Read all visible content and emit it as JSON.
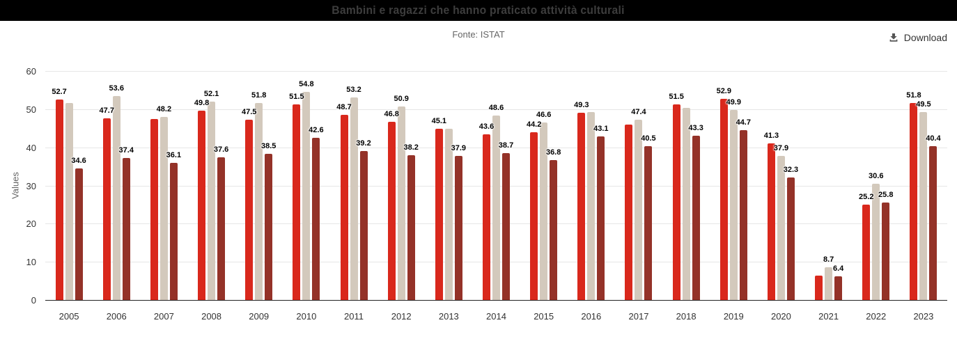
{
  "header": {
    "title": "Bambini e ragazzi che hanno praticato attività culturali",
    "bg_color": "#000000",
    "title_color": "#3d3d3d"
  },
  "toolbar": {
    "subtitle": "Fonte: ISTAT",
    "download_label": "Download"
  },
  "colors": {
    "series_red": "#d9281c",
    "series_beige": "#d3c9bc",
    "series_dark_red": "#943228",
    "gridline": "#e6e6e6",
    "axis_line": "#222222",
    "axis_text": "#333333",
    "muted_text": "#666666"
  },
  "chart_data": {
    "type": "bar",
    "title": "Bambini e ragazzi che hanno praticato attività culturali",
    "subtitle": "Fonte: ISTAT",
    "xlabel": "",
    "ylabel": "Values",
    "ylim": [
      0,
      60
    ],
    "yticks": [
      0,
      10,
      20,
      30,
      40,
      50,
      60
    ],
    "grid": true,
    "legend": "none",
    "categories": [
      "2005",
      "2006",
      "2007",
      "2008",
      "2009",
      "2010",
      "2011",
      "2012",
      "2013",
      "2014",
      "2015",
      "2016",
      "2017",
      "2018",
      "2019",
      "2020",
      "2021",
      "2022",
      "2023"
    ],
    "series": [
      {
        "name": "series-red",
        "color": "#d9281c",
        "values": [
          52.7,
          47.7,
          47.6,
          49.8,
          47.5,
          51.5,
          48.7,
          46.8,
          45.1,
          43.6,
          44.2,
          49.3,
          46.1,
          51.5,
          52.9,
          41.3,
          6.6,
          25.2,
          51.8
        ],
        "labels": [
          "52.7",
          "47.7",
          null,
          "49.8",
          "47.5",
          "51.5",
          "48.7",
          "46.8",
          "45.1",
          "43.6",
          "44.2",
          "49.3",
          null,
          "51.5",
          "52.9",
          "41.3",
          null,
          "25.2",
          "51.8"
        ]
      },
      {
        "name": "series-beige",
        "color": "#d3c9bc",
        "values": [
          51.8,
          53.6,
          48.2,
          52.1,
          51.8,
          54.8,
          53.2,
          50.9,
          45.0,
          48.6,
          46.6,
          49.5,
          47.4,
          50.6,
          49.9,
          37.9,
          8.7,
          30.6,
          49.5
        ],
        "labels": [
          null,
          "53.6",
          "48.2",
          "52.1",
          "51.8",
          "54.8",
          "53.2",
          "50.9",
          null,
          "48.6",
          "46.6",
          null,
          "47.4",
          null,
          "49.9",
          "37.9",
          "8.7",
          "30.6",
          "49.5"
        ]
      },
      {
        "name": "series-dark-red",
        "color": "#943228",
        "values": [
          34.6,
          37.4,
          36.1,
          37.6,
          38.5,
          42.6,
          39.2,
          38.2,
          37.9,
          38.7,
          36.8,
          43.1,
          40.5,
          43.3,
          44.7,
          32.3,
          6.4,
          25.8,
          40.4
        ],
        "labels": [
          "34.6",
          "37.4",
          "36.1",
          "37.6",
          "38.5",
          "42.6",
          "39.2",
          "38.2",
          "37.9",
          "38.7",
          "36.8",
          "43.1",
          "40.5",
          "43.3",
          "44.7",
          "32.3",
          "6.4",
          "25.8",
          "40.4"
        ]
      }
    ]
  }
}
